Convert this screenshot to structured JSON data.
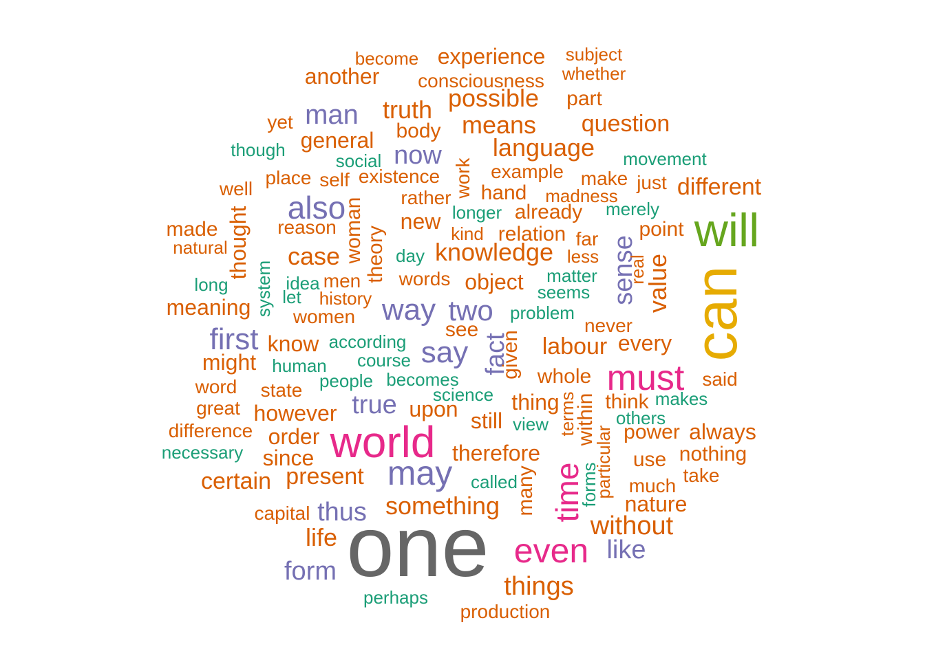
{
  "colors": {
    "green": "#1B9E77",
    "orange": "#D95F02",
    "purple": "#7570B3",
    "pink": "#E7298A",
    "lime": "#66A61E",
    "gold": "#E6AB02",
    "gray": "#666666"
  },
  "words": [
    {
      "text": "one",
      "color": "gray"
    },
    {
      "text": "can",
      "color": "gold"
    },
    {
      "text": "will",
      "color": "lime"
    },
    {
      "text": "world",
      "color": "pink"
    },
    {
      "text": "must",
      "color": "pink"
    },
    {
      "text": "even",
      "color": "pink"
    },
    {
      "text": "time",
      "color": "pink"
    },
    {
      "text": "may",
      "color": "purple"
    },
    {
      "text": "also",
      "color": "purple"
    },
    {
      "text": "way",
      "color": "purple"
    },
    {
      "text": "first",
      "color": "purple"
    },
    {
      "text": "say",
      "color": "purple"
    },
    {
      "text": "two",
      "color": "purple"
    },
    {
      "text": "man",
      "color": "purple"
    },
    {
      "text": "sense",
      "color": "purple"
    },
    {
      "text": "true",
      "color": "purple"
    },
    {
      "text": "thus",
      "color": "purple"
    },
    {
      "text": "form",
      "color": "purple"
    },
    {
      "text": "now",
      "color": "purple"
    },
    {
      "text": "like",
      "color": "purple"
    },
    {
      "text": "fact",
      "color": "purple"
    },
    {
      "text": "experience",
      "color": "orange"
    },
    {
      "text": "become",
      "color": "orange"
    },
    {
      "text": "subject",
      "color": "orange"
    },
    {
      "text": "whether",
      "color": "orange"
    },
    {
      "text": "another",
      "color": "orange"
    },
    {
      "text": "consciousness",
      "color": "orange"
    },
    {
      "text": "possible",
      "color": "orange"
    },
    {
      "text": "part",
      "color": "orange"
    },
    {
      "text": "truth",
      "color": "orange"
    },
    {
      "text": "yet",
      "color": "orange"
    },
    {
      "text": "body",
      "color": "orange"
    },
    {
      "text": "means",
      "color": "orange"
    },
    {
      "text": "question",
      "color": "orange"
    },
    {
      "text": "general",
      "color": "orange"
    },
    {
      "text": "language",
      "color": "orange"
    },
    {
      "text": "work",
      "color": "orange"
    },
    {
      "text": "example",
      "color": "orange"
    },
    {
      "text": "place",
      "color": "orange"
    },
    {
      "text": "self",
      "color": "orange"
    },
    {
      "text": "existence",
      "color": "orange"
    },
    {
      "text": "make",
      "color": "orange"
    },
    {
      "text": "just",
      "color": "orange"
    },
    {
      "text": "different",
      "color": "orange"
    },
    {
      "text": "well",
      "color": "orange"
    },
    {
      "text": "hand",
      "color": "orange"
    },
    {
      "text": "madness",
      "color": "orange"
    },
    {
      "text": "rather",
      "color": "orange"
    },
    {
      "text": "woman",
      "color": "orange"
    },
    {
      "text": "already",
      "color": "orange"
    },
    {
      "text": "made",
      "color": "orange"
    },
    {
      "text": "thought",
      "color": "orange"
    },
    {
      "text": "reason",
      "color": "orange"
    },
    {
      "text": "new",
      "color": "orange"
    },
    {
      "text": "relation",
      "color": "orange"
    },
    {
      "text": "point",
      "color": "orange"
    },
    {
      "text": "kind",
      "color": "orange"
    },
    {
      "text": "far",
      "color": "orange"
    },
    {
      "text": "natural",
      "color": "orange"
    },
    {
      "text": "theory",
      "color": "orange"
    },
    {
      "text": "case",
      "color": "orange"
    },
    {
      "text": "knowledge",
      "color": "orange"
    },
    {
      "text": "less",
      "color": "orange"
    },
    {
      "text": "real",
      "color": "orange"
    },
    {
      "text": "value",
      "color": "orange"
    },
    {
      "text": "men",
      "color": "orange"
    },
    {
      "text": "words",
      "color": "orange"
    },
    {
      "text": "object",
      "color": "orange"
    },
    {
      "text": "history",
      "color": "orange"
    },
    {
      "text": "meaning",
      "color": "orange"
    },
    {
      "text": "women",
      "color": "orange"
    },
    {
      "text": "never",
      "color": "orange"
    },
    {
      "text": "see",
      "color": "orange"
    },
    {
      "text": "know",
      "color": "orange"
    },
    {
      "text": "labour",
      "color": "orange"
    },
    {
      "text": "every",
      "color": "orange"
    },
    {
      "text": "might",
      "color": "orange"
    },
    {
      "text": "given",
      "color": "orange"
    },
    {
      "text": "whole",
      "color": "orange"
    },
    {
      "text": "said",
      "color": "orange"
    },
    {
      "text": "word",
      "color": "orange"
    },
    {
      "text": "state",
      "color": "orange"
    },
    {
      "text": "thing",
      "color": "orange"
    },
    {
      "text": "think",
      "color": "orange"
    },
    {
      "text": "great",
      "color": "orange"
    },
    {
      "text": "upon",
      "color": "orange"
    },
    {
      "text": "however",
      "color": "orange"
    },
    {
      "text": "still",
      "color": "orange"
    },
    {
      "text": "terms",
      "color": "orange"
    },
    {
      "text": "within",
      "color": "orange"
    },
    {
      "text": "difference",
      "color": "orange"
    },
    {
      "text": "order",
      "color": "orange"
    },
    {
      "text": "power",
      "color": "orange"
    },
    {
      "text": "always",
      "color": "orange"
    },
    {
      "text": "since",
      "color": "orange"
    },
    {
      "text": "therefore",
      "color": "orange"
    },
    {
      "text": "particular",
      "color": "orange"
    },
    {
      "text": "use",
      "color": "orange"
    },
    {
      "text": "nothing",
      "color": "orange"
    },
    {
      "text": "certain",
      "color": "orange"
    },
    {
      "text": "present",
      "color": "orange"
    },
    {
      "text": "take",
      "color": "orange"
    },
    {
      "text": "much",
      "color": "orange"
    },
    {
      "text": "many",
      "color": "orange"
    },
    {
      "text": "capital",
      "color": "orange"
    },
    {
      "text": "something",
      "color": "orange"
    },
    {
      "text": "nature",
      "color": "orange"
    },
    {
      "text": "without",
      "color": "orange"
    },
    {
      "text": "life",
      "color": "orange"
    },
    {
      "text": "things",
      "color": "orange"
    },
    {
      "text": "production",
      "color": "orange"
    },
    {
      "text": "though",
      "color": "green"
    },
    {
      "text": "social",
      "color": "green"
    },
    {
      "text": "movement",
      "color": "green"
    },
    {
      "text": "longer",
      "color": "green"
    },
    {
      "text": "merely",
      "color": "green"
    },
    {
      "text": "day",
      "color": "green"
    },
    {
      "text": "long",
      "color": "green"
    },
    {
      "text": "system",
      "color": "green"
    },
    {
      "text": "idea",
      "color": "green"
    },
    {
      "text": "let",
      "color": "green"
    },
    {
      "text": "matter",
      "color": "green"
    },
    {
      "text": "seems",
      "color": "green"
    },
    {
      "text": "problem",
      "color": "green"
    },
    {
      "text": "according",
      "color": "green"
    },
    {
      "text": "human",
      "color": "green"
    },
    {
      "text": "course",
      "color": "green"
    },
    {
      "text": "people",
      "color": "green"
    },
    {
      "text": "becomes",
      "color": "green"
    },
    {
      "text": "science",
      "color": "green"
    },
    {
      "text": "makes",
      "color": "green"
    },
    {
      "text": "others",
      "color": "green"
    },
    {
      "text": "view",
      "color": "green"
    },
    {
      "text": "necessary",
      "color": "green"
    },
    {
      "text": "called",
      "color": "green"
    },
    {
      "text": "forms",
      "color": "green"
    },
    {
      "text": "perhaps",
      "color": "green"
    }
  ]
}
